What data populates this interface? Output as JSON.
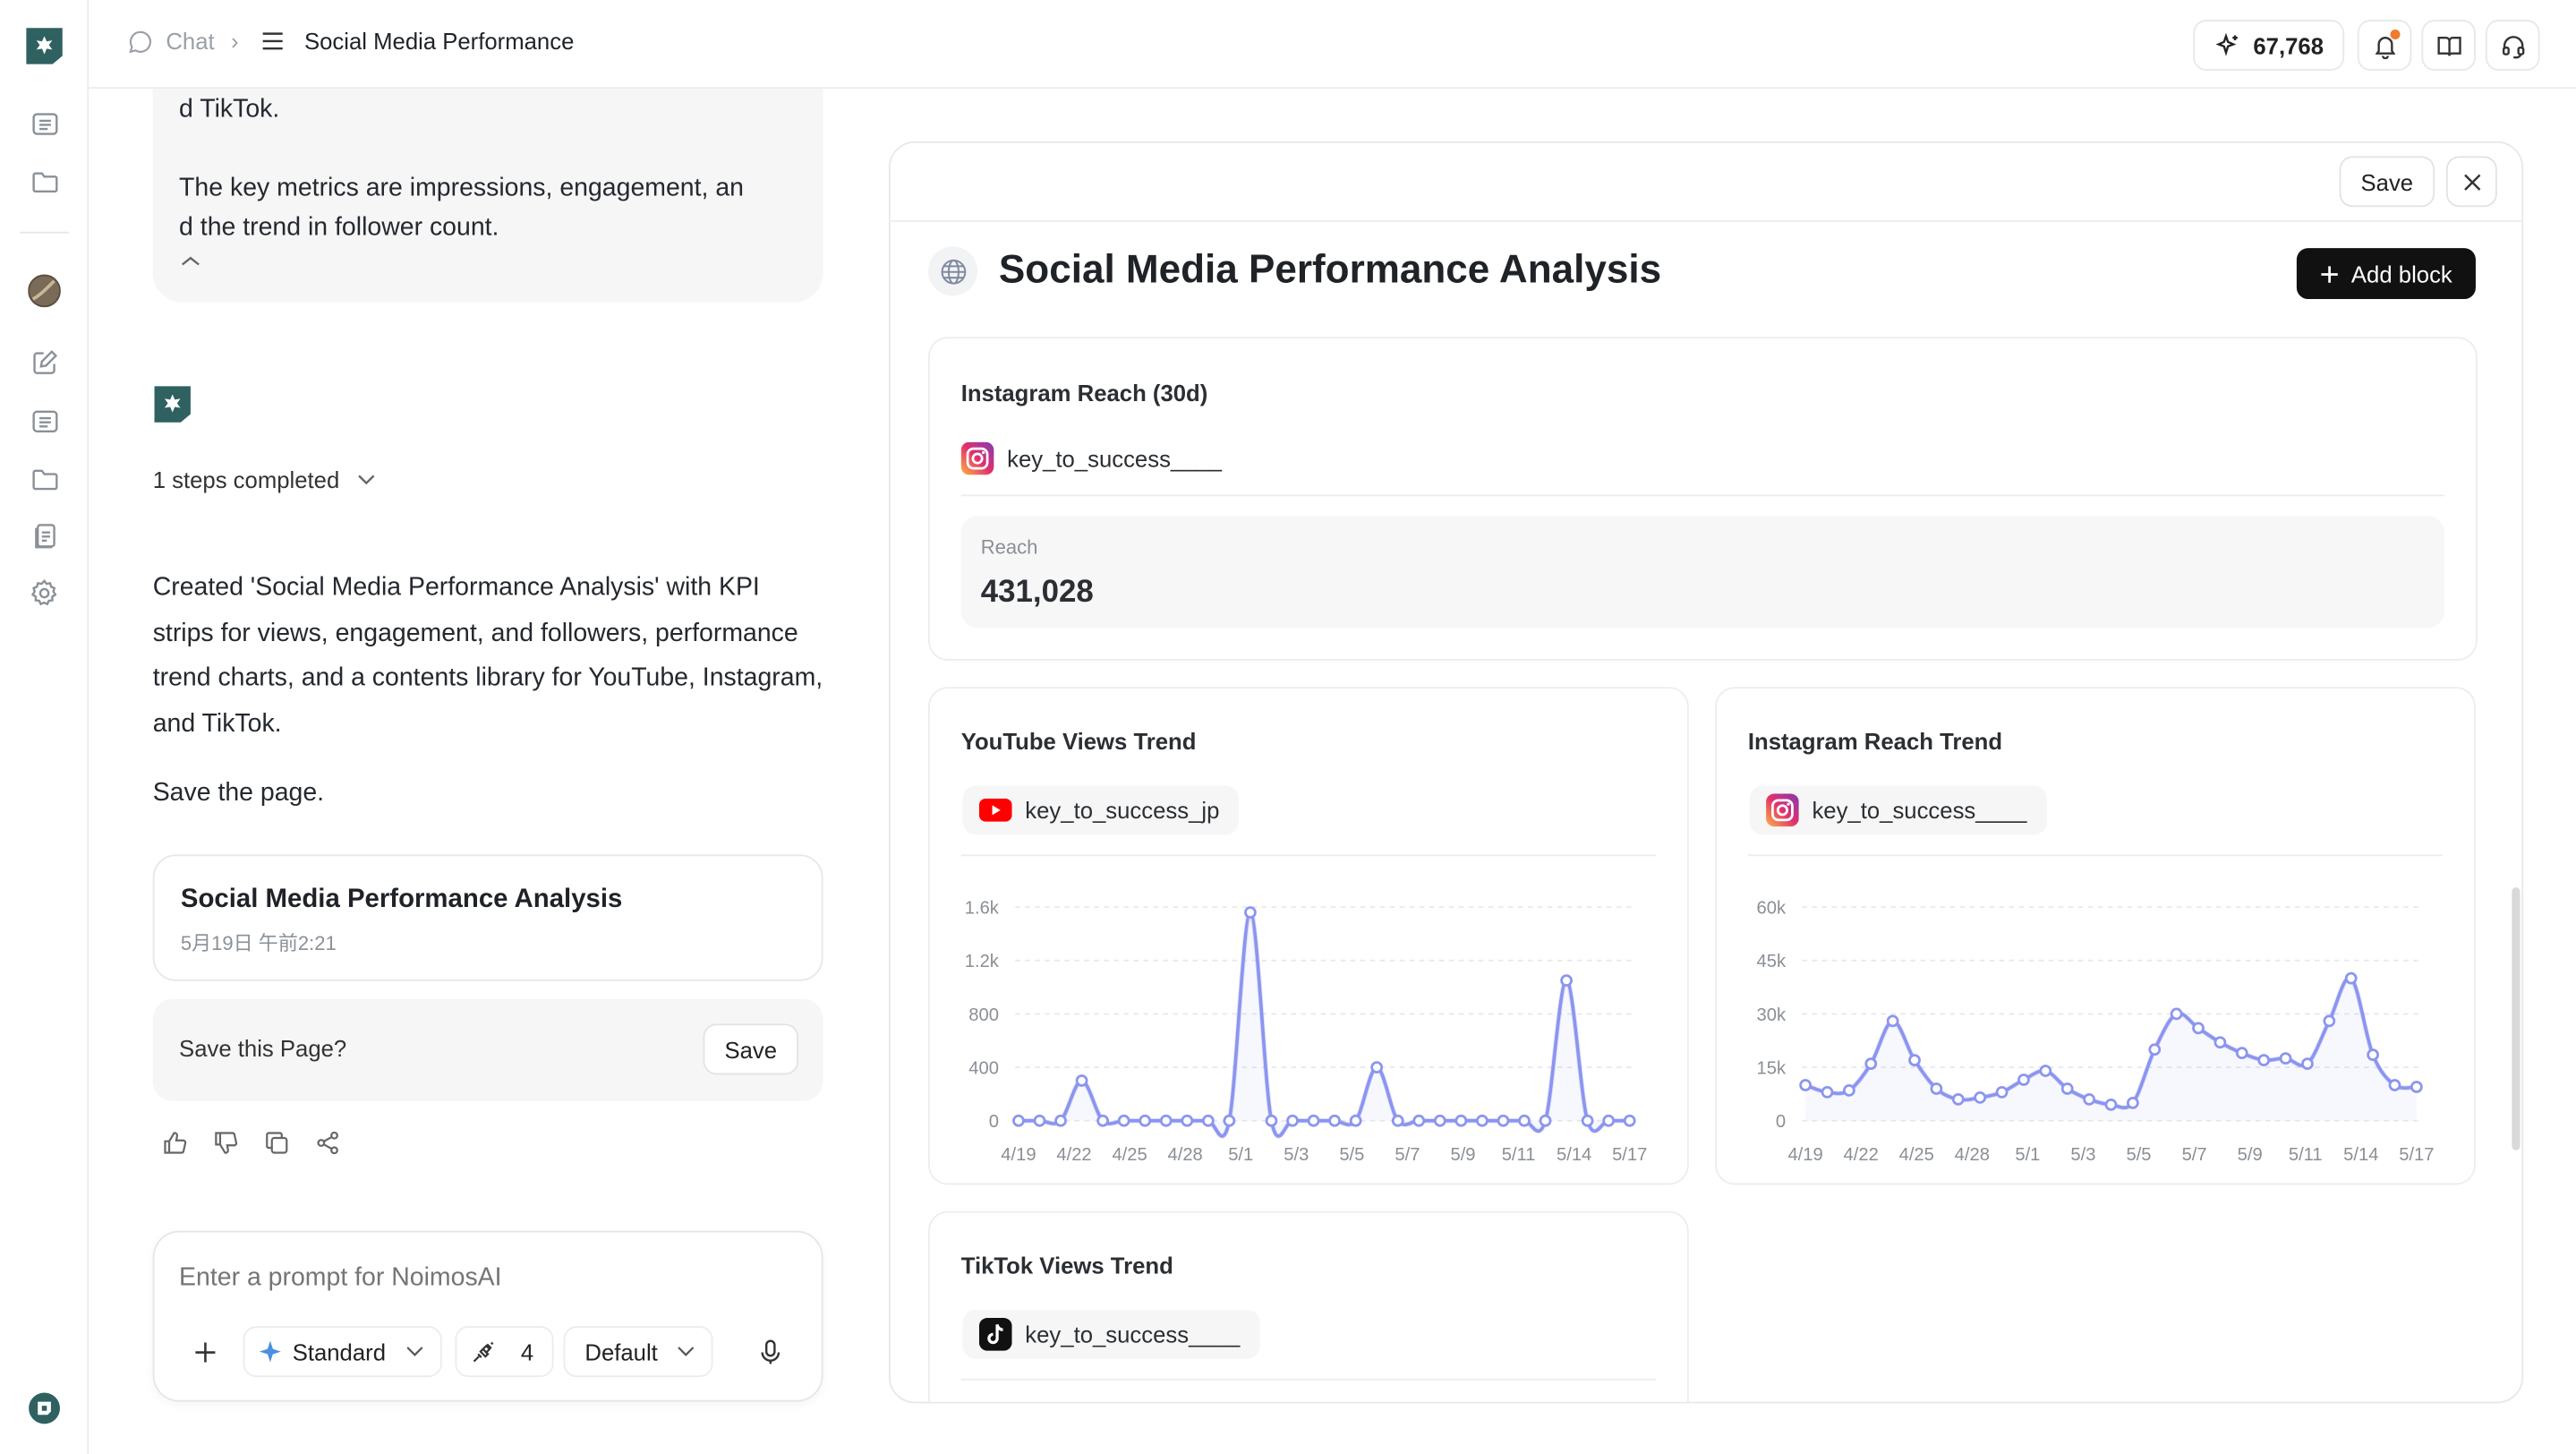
{
  "header": {
    "crumb_chat": "Chat",
    "crumb_page": "Social Media Performance",
    "credits": "67,768"
  },
  "chat": {
    "prev_message": [
      "d TikTok.",
      "The key metrics are impressions, engagement, an",
      "d the trend in follower count."
    ],
    "steps": "1 steps completed",
    "reply": "Created 'Social Media Performance Analysis' with KPI strips for views, engagement, and followers, performance trend charts, and a contents library for YouTube, Instagram, and TikTok.",
    "instruction": "Save the page.",
    "page_card": {
      "title": "Social Media Performance Analysis",
      "date": "5月19日 午前2:21"
    },
    "save_prompt": {
      "question": "Save this Page?",
      "button": "Save"
    },
    "input": {
      "placeholder": "Enter a prompt for NoimosAI",
      "mode": "Standard",
      "tool_count": "4",
      "preset": "Default"
    }
  },
  "panel": {
    "save_label": "Save",
    "title": "Social Media Performance Analysis",
    "add_block": "Add block",
    "kpi": {
      "title": "Instagram Reach (30d)",
      "account": "key_to_success____",
      "metric_label": "Reach",
      "metric_value": "431,028"
    },
    "youtube": {
      "title": "YouTube Views Trend",
      "account": "key_to_success_jp"
    },
    "instagram": {
      "title": "Instagram Reach Trend",
      "account": "key_to_success____"
    },
    "tiktok": {
      "title": "TikTok Views Trend",
      "account": "key_to_success____"
    }
  },
  "colors": {
    "accent": "#2f6161",
    "line": "#8b95ef",
    "dark_button": "#111111",
    "youtube_red": "#ff0000"
  },
  "chart_data": [
    {
      "type": "line",
      "title": "YouTube Views Trend",
      "x_ticks": [
        "4/19",
        "4/22",
        "4/25",
        "4/28",
        "5/1",
        "5/3",
        "5/5",
        "5/7",
        "5/9",
        "5/11",
        "5/14",
        "5/17"
      ],
      "y_ticks": [
        "0",
        "400",
        "800",
        "1.2k",
        "1.6k"
      ],
      "ylim": [
        0,
        1600
      ],
      "grid": true,
      "series": [
        {
          "values": [
            0,
            0,
            0,
            300,
            0,
            0,
            0,
            0,
            0,
            0,
            0,
            1560,
            0,
            0,
            0,
            0,
            0,
            400,
            0,
            0,
            0,
            0,
            0,
            0,
            0,
            0,
            1050,
            0,
            0,
            0
          ]
        }
      ]
    },
    {
      "type": "line",
      "title": "Instagram Reach Trend",
      "x_ticks": [
        "4/19",
        "4/22",
        "4/25",
        "4/28",
        "5/1",
        "5/3",
        "5/5",
        "5/7",
        "5/9",
        "5/11",
        "5/14",
        "5/17"
      ],
      "y_ticks": [
        "0",
        "15k",
        "30k",
        "45k",
        "60k"
      ],
      "ylim": [
        0,
        60000
      ],
      "grid": true,
      "series": [
        {
          "values": [
            10000,
            8000,
            8500,
            16000,
            28000,
            17000,
            9000,
            6000,
            6500,
            8000,
            11500,
            14000,
            9000,
            6000,
            4500,
            5000,
            20000,
            30000,
            26000,
            22000,
            19000,
            17000,
            17500,
            16000,
            28000,
            40000,
            18500,
            10000,
            9500
          ]
        }
      ]
    }
  ]
}
